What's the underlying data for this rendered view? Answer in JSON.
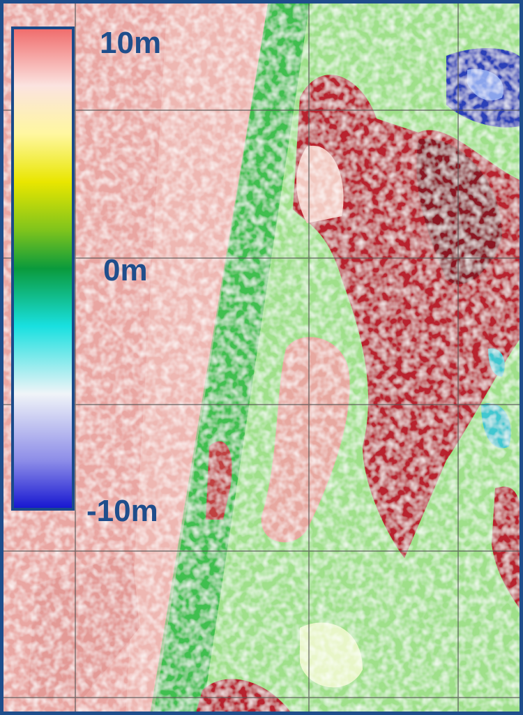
{
  "legend": {
    "labels": [
      "10m",
      "0m",
      "-10m"
    ]
  }
}
